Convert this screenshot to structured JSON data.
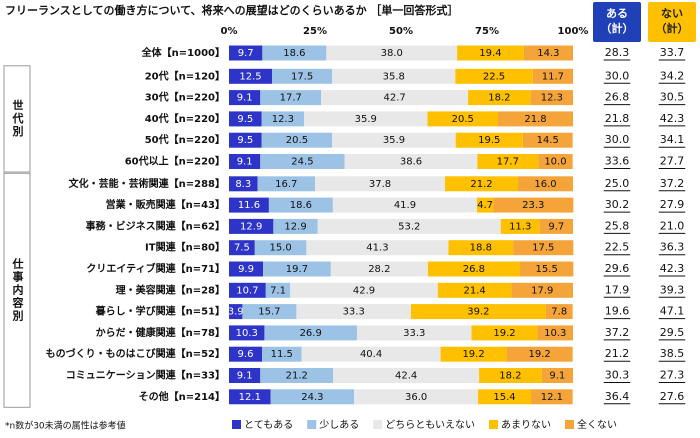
{
  "chart_data": {
    "type": "stacked-bar-horizontal",
    "title": "フリーランスとしての働き方について、将来への展望はどのくらいあるか ［単一回答形式］",
    "categories": [
      "全体【n=1000】",
      "20代【n=120】",
      "30代【n=220】",
      "40代【n=220】",
      "50代【n=220】",
      "60代以上【n=220】",
      "文化・芸能・芸術関連【n=288】",
      "営業・販売関連【n=43】",
      "事務・ビジネス関連【n=62】",
      "IT関連【n=80】",
      "クリエイティブ関連【n=71】",
      "理・美容関連【n=28】",
      "暮らし・学び関連【n=51】",
      "からだ・健康関連【n=78】",
      "ものづくり・ものはこび関連【n=52】",
      "コミュニケーション関連【n=33】",
      "その他【n=214】"
    ],
    "groups": [
      "世代別",
      "仕事内容別"
    ],
    "series": [
      {
        "name": "とてもある",
        "color": "#2e34c8",
        "values": [
          9.7,
          12.5,
          9.1,
          9.5,
          9.5,
          9.1,
          8.3,
          11.6,
          12.9,
          7.5,
          9.9,
          10.7,
          3.9,
          10.3,
          9.6,
          9.1,
          12.1
        ],
        "value_labels": [
          "9.7",
          "12.5",
          "9.1",
          "9.5",
          "9.5",
          "9.1",
          "8.3",
          "11.6",
          "12.9",
          "7.5",
          "9.9",
          "10.7",
          "3.9",
          "10.3",
          "9.6",
          "9.1",
          "12.1"
        ]
      },
      {
        "name": "少しある",
        "color": "#9cc3e5",
        "values": [
          18.6,
          17.5,
          17.7,
          12.3,
          20.5,
          24.5,
          16.7,
          18.6,
          12.9,
          15.0,
          19.7,
          7.1,
          15.7,
          26.9,
          11.5,
          21.2,
          24.3
        ],
        "value_labels": [
          "18.6",
          "17.5",
          "17.7",
          "12.3",
          "20.5",
          "24.5",
          "16.7",
          "18.6",
          "12.9",
          "15.0",
          "19.7",
          "7.1",
          "15.7",
          "26.9",
          "11.5",
          "21.2",
          "24.3"
        ]
      },
      {
        "name": "どちらともいえない",
        "color": "#e8e8e8",
        "values": [
          38.0,
          35.8,
          42.7,
          35.9,
          35.9,
          38.6,
          37.8,
          41.9,
          53.2,
          41.3,
          28.2,
          42.9,
          33.3,
          33.3,
          40.4,
          42.4,
          36.0
        ],
        "value_labels": [
          "38.0",
          "35.8",
          "42.7",
          "35.9",
          "35.9",
          "38.6",
          "37.8",
          "41.9",
          "53.2",
          "41.3",
          "28.2",
          "42.9",
          "33.3",
          "33.3",
          "40.4",
          "42.4",
          "36.0"
        ]
      },
      {
        "name": "あまりない",
        "color": "#ffc000",
        "values": [
          19.4,
          22.5,
          18.2,
          20.5,
          19.5,
          17.7,
          21.2,
          4.7,
          11.3,
          18.8,
          26.8,
          21.4,
          39.2,
          19.2,
          19.2,
          18.2,
          15.4
        ],
        "value_labels": [
          "19.4",
          "22.5",
          "18.2",
          "20.5",
          "19.5",
          "17.7",
          "21.2",
          "4.7",
          "11.3",
          "18.8",
          "26.8",
          "21.4",
          "39.2",
          "19.2",
          "19.2",
          "18.2",
          "15.4"
        ]
      },
      {
        "name": "全くない",
        "color": "#f5a43a",
        "values": [
          14.3,
          11.7,
          12.3,
          21.8,
          14.5,
          10.0,
          16.0,
          23.3,
          9.7,
          17.5,
          15.5,
          17.9,
          7.8,
          10.3,
          19.2,
          9.1,
          12.1
        ],
        "value_labels": [
          "14.3",
          "11.7",
          "12.3",
          "21.8",
          "14.5",
          "10.0",
          "16.0",
          "23.3",
          "9.7",
          "17.5",
          "15.5",
          "17.9",
          "7.8",
          "10.3",
          "19.2",
          "9.1",
          "12.1"
        ]
      }
    ],
    "sums": [
      {
        "name": [
          "ある",
          "（計）"
        ],
        "color": "#2040b8",
        "values": [
          28.3,
          30.0,
          26.8,
          21.8,
          30.0,
          33.6,
          25.0,
          30.2,
          25.8,
          22.5,
          29.6,
          17.9,
          19.6,
          37.2,
          21.2,
          30.3,
          36.4
        ],
        "value_labels": [
          "28.3",
          "30.0",
          "26.8",
          "21.8",
          "30.0",
          "33.6",
          "25.0",
          "30.2",
          "25.8",
          "22.5",
          "29.6",
          "17.9",
          "19.6",
          "37.2",
          "21.2",
          "30.3",
          "36.4"
        ]
      },
      {
        "name": [
          "ない",
          "（計）"
        ],
        "color": "#ffc000",
        "values": [
          33.7,
          34.2,
          30.5,
          42.3,
          34.1,
          27.7,
          37.2,
          27.9,
          21.0,
          36.3,
          42.3,
          39.3,
          47.1,
          29.5,
          38.5,
          27.3,
          27.6
        ],
        "value_labels": [
          "33.7",
          "34.2",
          "30.5",
          "42.3",
          "34.1",
          "27.7",
          "37.2",
          "27.9",
          "21.0",
          "36.3",
          "42.3",
          "39.3",
          "47.1",
          "29.5",
          "38.5",
          "27.3",
          "27.6"
        ]
      }
    ],
    "xlim": [
      0,
      100
    ],
    "xticks": [
      {
        "value": 0,
        "label": "0%"
      },
      {
        "value": 25,
        "label": "25%"
      },
      {
        "value": 50,
        "label": "50%"
      },
      {
        "value": 75,
        "label": "75%"
      },
      {
        "value": 100,
        "label": "100%"
      }
    ],
    "footnote": "*n数が30未満の属性は参考値"
  }
}
